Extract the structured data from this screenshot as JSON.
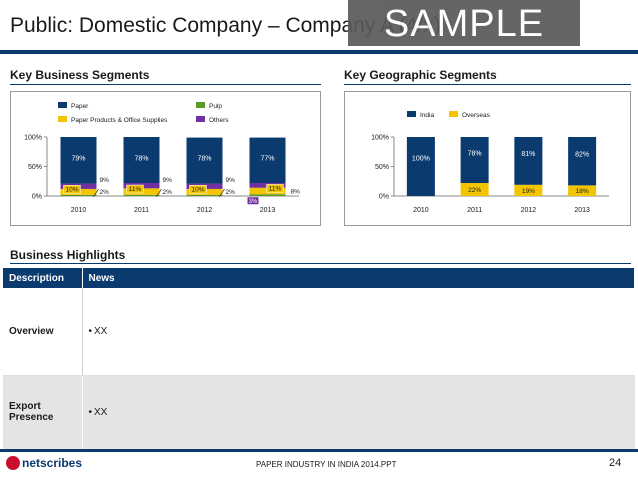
{
  "slide": {
    "title": "Public: Domestic Company – Company A (4/x)",
    "watermark": "SAMPLE"
  },
  "sections": {
    "business_segments": "Key Business Segments",
    "geographic_segments": "Key Geographic Segments",
    "business_highlights": "Business Highlights"
  },
  "highlights": {
    "header_description": "Description",
    "header_news": "News",
    "rows": [
      {
        "label": "Overview",
        "bullet": "•",
        "text": "XX"
      },
      {
        "label_line1": "Export",
        "label_line2": "Presence",
        "bullet": "•",
        "text": "XX"
      }
    ]
  },
  "footer": {
    "logo_text": "netscribes",
    "center_text": "PAPER INDUSTRY IN INDIA 2014.PPT",
    "page_number": "24"
  },
  "chart_data": [
    {
      "type": "bar",
      "stacked": true,
      "categories": [
        "2010",
        "2011",
        "2012",
        "2013"
      ],
      "y_ticks": [
        "0%",
        "50%",
        "100%"
      ],
      "ylim": [
        0,
        100
      ],
      "legend_position": "top",
      "series": [
        {
          "name": "Paper",
          "color": "#0b3a6e",
          "values": [
            79,
            78,
            78,
            77
          ],
          "labels": [
            "79%",
            "78%",
            "78%",
            "77%"
          ]
        },
        {
          "name": "Paper Products & Office Supplies",
          "color": "#f2c500",
          "values": [
            10,
            11,
            10,
            11
          ],
          "labels": [
            "10%",
            "11%",
            "10%",
            "11%"
          ]
        },
        {
          "name": "Pulp",
          "color": "#5a9a2a",
          "values": [
            2,
            2,
            2,
            3
          ],
          "labels": [
            "2%",
            "2%",
            "2%",
            "3%"
          ]
        },
        {
          "name": "Others",
          "color": "#7030a0",
          "values": [
            9,
            9,
            9,
            8
          ],
          "labels": [
            "9%",
            "9%",
            "9%",
            "8%"
          ]
        }
      ]
    },
    {
      "type": "bar",
      "stacked": true,
      "categories": [
        "2010",
        "2011",
        "2012",
        "2013"
      ],
      "y_ticks": [
        "0%",
        "50%",
        "100%"
      ],
      "ylim": [
        0,
        100
      ],
      "legend_position": "top",
      "series": [
        {
          "name": "India",
          "color": "#0b3a6e",
          "values": [
            100,
            78,
            81,
            82
          ],
          "labels": [
            "100%",
            "78%",
            "81%",
            "82%"
          ]
        },
        {
          "name": "Overseas",
          "color": "#f2c500",
          "values": [
            0,
            22,
            19,
            18
          ],
          "labels": [
            "",
            "22%",
            "19%",
            "18%"
          ]
        }
      ]
    }
  ]
}
